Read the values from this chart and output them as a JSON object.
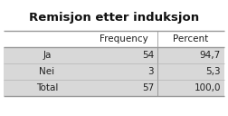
{
  "title": "Remisjon etter induksjon",
  "col_headers": [
    "",
    "Frequency",
    "Percent"
  ],
  "rows": [
    [
      "Ja",
      "54",
      "94,7"
    ],
    [
      "Nei",
      "3",
      "5,3"
    ],
    [
      "Total",
      "57",
      "100,0"
    ]
  ],
  "row_bg_color": "#d8d8d8",
  "header_bg_color": "#ffffff",
  "title_fontsize": 9.5,
  "cell_fontsize": 7.5,
  "header_fontsize": 7.5,
  "fig_bg_color": "#ffffff",
  "border_color": "#999999",
  "text_color": "#222222",
  "title_color": "#111111"
}
